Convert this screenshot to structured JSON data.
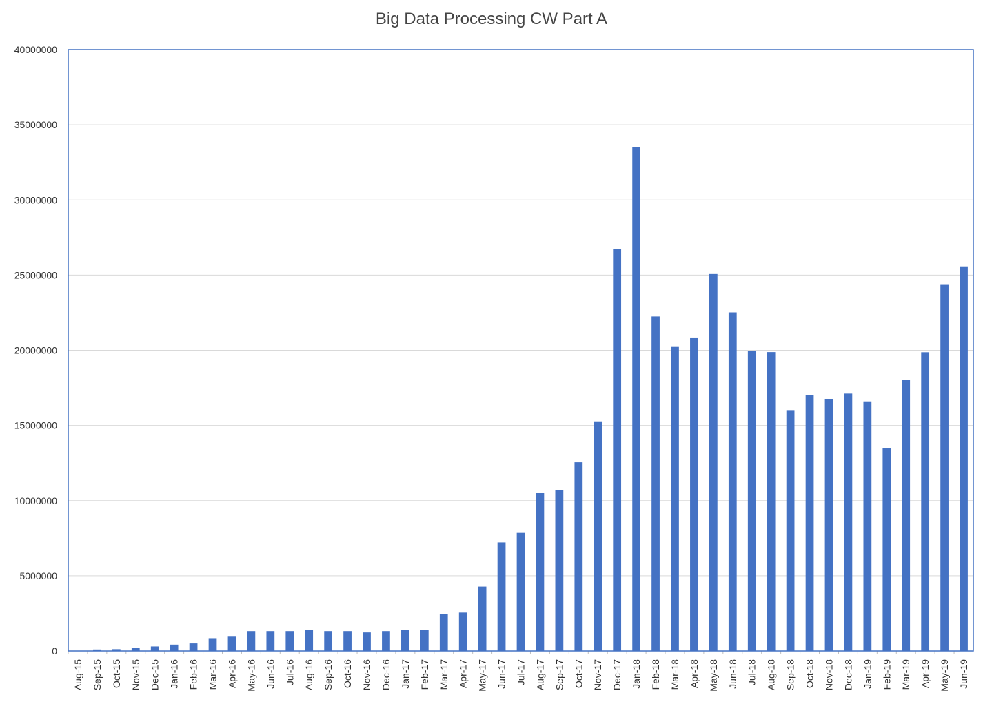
{
  "chart_data": {
    "type": "bar",
    "title": "Big Data Processing CW Part A",
    "xlabel": "",
    "ylabel": "",
    "ylim": [
      0,
      40000000
    ],
    "yticks": [
      0,
      5000000,
      10000000,
      15000000,
      20000000,
      25000000,
      30000000,
      35000000,
      40000000
    ],
    "grid": true,
    "legend": "none",
    "bar_color": "#4472C4",
    "categories": [
      "Aug-15",
      "Sep-15",
      "Oct-15",
      "Nov-15",
      "Dec-15",
      "Jan-16",
      "Feb-16",
      "Mar-16",
      "Apr-16",
      "May-16",
      "Jun-16",
      "Jul-16",
      "Aug-16",
      "Sep-16",
      "Oct-16",
      "Nov-16",
      "Dec-16",
      "Jan-17",
      "Feb-17",
      "Mar-17",
      "Apr-17",
      "May-17",
      "Jun-17",
      "Jul-17",
      "Aug-17",
      "Sep-17",
      "Oct-17",
      "Nov-17",
      "Dec-17",
      "Jan-18",
      "Feb-18",
      "Mar-18",
      "Apr-18",
      "May-18",
      "Jun-18",
      "Jul-18",
      "Aug-18",
      "Sep-18",
      "Oct-18",
      "Nov-18",
      "Dec-18",
      "Jan-19",
      "Feb-19",
      "Mar-19",
      "Apr-19",
      "May-19",
      "Jun-19"
    ],
    "values": [
      0,
      100000,
      120000,
      200000,
      300000,
      420000,
      500000,
      850000,
      950000,
      1320000,
      1320000,
      1320000,
      1420000,
      1320000,
      1320000,
      1230000,
      1320000,
      1420000,
      1420000,
      2450000,
      2550000,
      4280000,
      7220000,
      7850000,
      10530000,
      10720000,
      12550000,
      15270000,
      26720000,
      33500000,
      22250000,
      20220000,
      20850000,
      25070000,
      22520000,
      19960000,
      19880000,
      16020000,
      17040000,
      16770000,
      17120000,
      16600000,
      13470000,
      18030000,
      19870000,
      24350000,
      25580000
    ]
  }
}
